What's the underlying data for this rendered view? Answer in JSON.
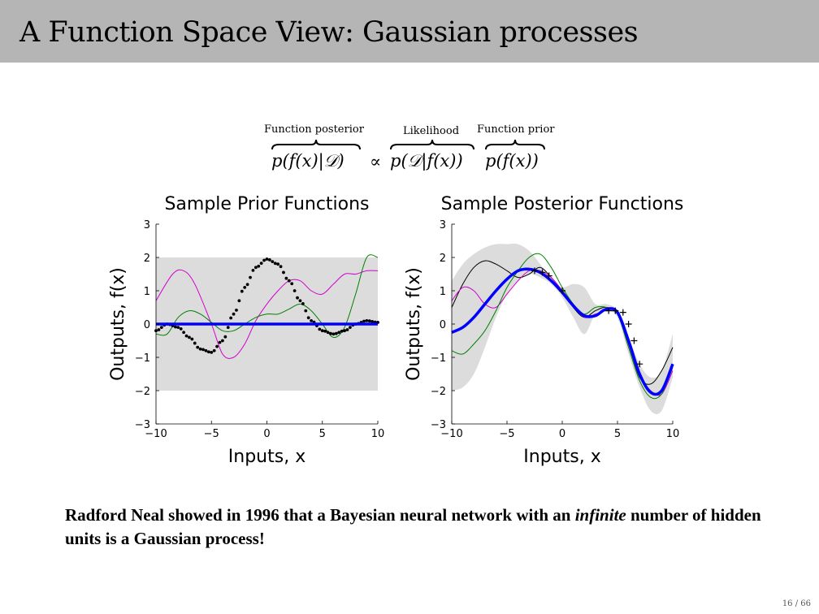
{
  "slide": {
    "title": "A Function Space View: Gaussian processes",
    "page": "16 / 66"
  },
  "equation": {
    "posterior_label": "Function posterior",
    "likelihood_label": "Likelihood",
    "prior_label": "Function prior",
    "posterior_term": "p(f(x)|𝒟)",
    "proportional": "∝",
    "likelihood_term": "p(𝒟|f(x))",
    "prior_term": "p(f(x))"
  },
  "caption": {
    "before": "Radford Neal showed in 1996 that a Bayesian neural network with an ",
    "emphasis": "infinite",
    "after": " number of hidden units is a Gaussian process!"
  },
  "chart_data": [
    {
      "type": "line",
      "title": "Sample Prior Functions",
      "xlabel": "Inputs, x",
      "ylabel": "Outputs, f(x)",
      "xlim": [
        -10,
        10
      ],
      "ylim": [
        -3,
        3
      ],
      "xticks": [
        "−10",
        "−5",
        "0",
        "5",
        "10"
      ],
      "yticks": [
        "−3",
        "−2",
        "−1",
        "0",
        "1",
        "2",
        "3"
      ],
      "band": {
        "lower": -2,
        "upper": 2,
        "color": "#dcdcdc"
      },
      "series": [
        {
          "color": "#d000d0",
          "style": "solid",
          "x": [
            -10,
            -8.5,
            -7.5,
            -6.5,
            -5,
            -4,
            -3,
            -2,
            -1,
            0,
            1,
            2,
            3,
            4,
            5,
            6,
            7,
            8,
            9,
            10
          ],
          "y": [
            0.7,
            1.5,
            1.6,
            1.2,
            0.0,
            -0.9,
            -1.0,
            -0.6,
            0.1,
            0.6,
            1.0,
            1.3,
            1.3,
            1.0,
            0.9,
            1.2,
            1.5,
            1.5,
            1.6,
            1.6
          ]
        },
        {
          "color": "#008000",
          "style": "solid",
          "x": [
            -10,
            -9,
            -8,
            -7,
            -6,
            -5,
            -4,
            -3,
            -2,
            -1,
            0,
            1,
            2,
            3,
            4,
            5,
            6,
            7,
            8,
            9,
            10
          ],
          "y": [
            -0.3,
            -0.3,
            0.2,
            0.4,
            0.3,
            0.05,
            -0.2,
            -0.2,
            0.0,
            0.2,
            0.3,
            0.3,
            0.45,
            0.6,
            0.4,
            0.0,
            -0.4,
            -0.1,
            0.9,
            2.0,
            2.0
          ]
        },
        {
          "color": "#000000",
          "style": "dotted",
          "x": [
            -10,
            -9,
            -8,
            -7,
            -6,
            -5,
            -4,
            -3,
            -2,
            -1,
            0,
            1,
            2,
            3,
            4,
            5,
            6,
            7,
            8,
            9,
            10
          ],
          "y": [
            -0.2,
            0.0,
            -0.1,
            -0.4,
            -0.75,
            -0.85,
            -0.5,
            0.3,
            1.1,
            1.7,
            1.95,
            1.8,
            1.3,
            0.7,
            0.1,
            -0.2,
            -0.3,
            -0.2,
            0.0,
            0.1,
            0.05
          ]
        },
        {
          "color": "#0000ff",
          "style": "thick",
          "x": [
            -10,
            10
          ],
          "y": [
            0,
            0
          ]
        }
      ]
    },
    {
      "type": "line",
      "title": "Sample Posterior Functions",
      "xlabel": "Inputs, x",
      "ylabel": "Outputs, f(x)",
      "xlim": [
        -10,
        10
      ],
      "ylim": [
        -3,
        3
      ],
      "xticks": [
        "−10",
        "−5",
        "0",
        "5",
        "10"
      ],
      "yticks": [
        "−3",
        "−2",
        "−1",
        "0",
        "1",
        "2",
        "3"
      ],
      "band": {
        "color": "#dcdcdc",
        "x": [
          -10,
          -9,
          -8,
          -7,
          -6,
          -5,
          -4,
          -3,
          -2,
          -1,
          0,
          1,
          2,
          3,
          4,
          5,
          6,
          7,
          8,
          9,
          10
        ],
        "lower": [
          -2.0,
          -1.9,
          -1.5,
          -0.7,
          0.2,
          0.9,
          1.3,
          1.5,
          1.4,
          1.2,
          0.8,
          0.2,
          -0.3,
          0.3,
          0.4,
          0.2,
          -0.9,
          -1.9,
          -2.6,
          -2.6,
          -1.6
        ],
        "upper": [
          1.3,
          1.8,
          2.1,
          2.3,
          2.4,
          2.4,
          2.4,
          2.2,
          1.8,
          1.3,
          1.1,
          1.2,
          1.1,
          0.6,
          0.6,
          0.4,
          -0.4,
          -1.2,
          -1.6,
          -1.4,
          -0.3
        ]
      },
      "series": [
        {
          "color": "#000000",
          "style": "solid",
          "x": [
            -10,
            -9,
            -8,
            -7,
            -6,
            -5,
            -4,
            -3,
            -2,
            -1,
            0,
            1,
            2,
            3,
            4,
            5,
            6,
            7,
            8,
            9,
            10
          ],
          "y": [
            0.5,
            1.2,
            1.7,
            1.9,
            1.8,
            1.6,
            1.4,
            1.5,
            1.7,
            1.4,
            1.0,
            0.5,
            0.2,
            0.4,
            0.5,
            0.3,
            -0.6,
            -1.6,
            -1.8,
            -1.4,
            -0.7
          ]
        },
        {
          "color": "#d000d0",
          "style": "solid",
          "x": [
            -10,
            -9,
            -8,
            -7,
            -6,
            -5,
            -4,
            -3,
            -2,
            -1,
            0,
            1,
            2,
            3,
            4,
            5,
            6,
            7,
            8,
            9,
            10
          ],
          "y": [
            0.7,
            1.1,
            1.0,
            0.6,
            0.5,
            0.9,
            1.3,
            1.6,
            1.6,
            1.4,
            1.0,
            0.6,
            0.2,
            0.3,
            0.4,
            0.3,
            -0.6,
            -1.5,
            -2.0,
            -2.1,
            -1.4
          ]
        },
        {
          "color": "#008000",
          "style": "solid",
          "x": [
            -10,
            -9,
            -8,
            -7,
            -6,
            -5,
            -4,
            -3,
            -2,
            -1,
            0,
            1,
            2,
            3,
            4,
            5,
            6,
            7,
            8,
            9,
            10
          ],
          "y": [
            -0.8,
            -0.9,
            -0.6,
            -0.2,
            0.4,
            1.1,
            1.6,
            2.0,
            2.1,
            1.7,
            1.1,
            0.6,
            0.3,
            0.5,
            0.5,
            0.3,
            -0.7,
            -1.7,
            -2.2,
            -2.1,
            -1.3
          ]
        },
        {
          "color": "#0000ff",
          "style": "thick",
          "x": [
            -10,
            -9,
            -8,
            -7,
            -6,
            -5,
            -4,
            -3,
            -2,
            -1,
            0,
            1,
            2,
            3,
            4,
            5,
            6,
            7,
            8,
            9,
            10
          ],
          "y": [
            -0.25,
            -0.1,
            0.2,
            0.6,
            1.0,
            1.35,
            1.6,
            1.65,
            1.55,
            1.3,
            0.95,
            0.55,
            0.25,
            0.25,
            0.45,
            0.35,
            -0.5,
            -1.5,
            -2.05,
            -2.0,
            -1.2
          ]
        },
        {
          "color": "#000000",
          "style": "markers",
          "x": [
            -2.5,
            -1.8,
            -1.2,
            0.0,
            4.2,
            4.8,
            5.5,
            6.0,
            6.5,
            7.0
          ],
          "y": [
            1.6,
            1.55,
            1.45,
            1.0,
            0.4,
            0.4,
            0.35,
            0.0,
            -0.5,
            -1.2
          ]
        }
      ]
    }
  ]
}
